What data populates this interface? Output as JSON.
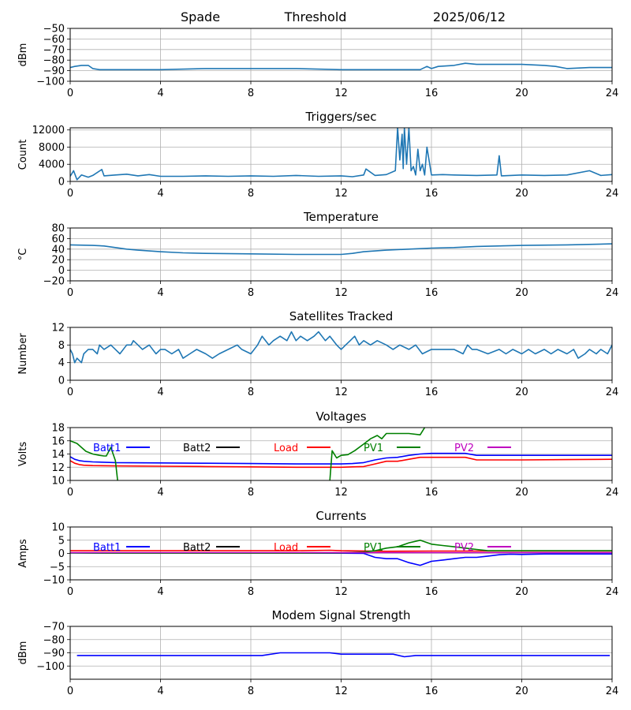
{
  "header": {
    "station": "Spade",
    "label": "Threshold",
    "date": "2025/06/12"
  },
  "colors": {
    "series": "#1f77b4",
    "batt1": "#0000ff",
    "batt2": "#000000",
    "load": "#ff0000",
    "pv1": "#008000",
    "pv2": "#bf00bf",
    "grid": "#b0b0b0"
  },
  "chart_data": [
    {
      "id": "threshold",
      "type": "line",
      "title": "",
      "ylabel": "dBm",
      "xlim": [
        0,
        24
      ],
      "ylim": [
        -100,
        -50
      ],
      "xticks": [
        0,
        4,
        8,
        12,
        16,
        20,
        24
      ],
      "yticks": [
        -100,
        -90,
        -80,
        -70,
        -60,
        -50
      ],
      "grid": true,
      "series": [
        {
          "x": [
            0,
            0.2,
            0.5,
            0.8,
            1.0,
            1.3,
            2,
            4,
            6,
            8,
            10,
            12,
            14,
            15.5,
            15.8,
            16,
            16.3,
            17,
            17.5,
            18,
            19,
            20,
            21,
            21.5,
            22,
            23,
            24
          ],
          "y": [
            -87,
            -86,
            -85,
            -85,
            -88,
            -89,
            -89,
            -89,
            -88,
            -88,
            -88,
            -89,
            -89,
            -89,
            -86,
            -88,
            -86,
            -85,
            -83,
            -84,
            -84,
            -84,
            -85,
            -86,
            -88,
            -87,
            -87
          ]
        }
      ]
    },
    {
      "id": "triggers",
      "type": "line",
      "title": "Triggers/sec",
      "ylabel": "Count",
      "xlim": [
        0,
        24
      ],
      "ylim": [
        0,
        12500
      ],
      "xticks": [
        0,
        4,
        8,
        12,
        16,
        20,
        24
      ],
      "yticks": [
        0,
        4000,
        8000,
        12000
      ],
      "grid": true,
      "series": [
        {
          "x": [
            0,
            0.15,
            0.3,
            0.5,
            0.8,
            1.0,
            1.4,
            1.5,
            2,
            2.5,
            3,
            3.5,
            4,
            5,
            6,
            7,
            8,
            9,
            10,
            11,
            12,
            12.5,
            13,
            13.1,
            13.5,
            14,
            14.4,
            14.5,
            14.6,
            14.7,
            14.75,
            14.8,
            14.9,
            15.0,
            15.1,
            15.2,
            15.3,
            15.4,
            15.5,
            15.6,
            15.7,
            15.8,
            16,
            16.5,
            17,
            18,
            18.9,
            19.0,
            19.1,
            19.5,
            20,
            21,
            22,
            23,
            23.5,
            24
          ],
          "y": [
            1200,
            2500,
            400,
            1500,
            1000,
            1400,
            2800,
            1300,
            1500,
            1700,
            1300,
            1600,
            1200,
            1200,
            1300,
            1200,
            1300,
            1200,
            1400,
            1200,
            1300,
            1100,
            1500,
            2900,
            1400,
            1600,
            2500,
            12500,
            5000,
            11000,
            3000,
            12500,
            4000,
            12500,
            2500,
            3500,
            1500,
            7500,
            2500,
            4000,
            1500,
            8000,
            1500,
            1600,
            1500,
            1400,
            1500,
            6000,
            1300,
            1400,
            1500,
            1400,
            1500,
            2500,
            1400,
            1600
          ]
        }
      ]
    },
    {
      "id": "temperature",
      "type": "line",
      "title": "Temperature",
      "ylabel": "°C",
      "xlim": [
        0,
        24
      ],
      "ylim": [
        -20,
        80
      ],
      "xticks": [
        0,
        4,
        8,
        12,
        16,
        20,
        24
      ],
      "yticks": [
        -20,
        0,
        20,
        40,
        60,
        80
      ],
      "grid": true,
      "series": [
        {
          "x": [
            0,
            1,
            1.5,
            2,
            2.5,
            3,
            4,
            5,
            6,
            8,
            10,
            12,
            12.5,
            13,
            14,
            15,
            16,
            17,
            18,
            20,
            22,
            24
          ],
          "y": [
            48,
            47,
            46,
            43,
            40,
            38,
            35,
            33,
            32,
            31,
            30,
            30,
            32,
            35,
            38,
            40,
            42,
            43,
            45,
            47,
            48,
            50
          ]
        }
      ]
    },
    {
      "id": "satellites",
      "type": "line",
      "title": "Satellites Tracked",
      "ylabel": "Number",
      "xlim": [
        0,
        24
      ],
      "ylim": [
        0,
        12
      ],
      "xticks": [
        0,
        4,
        8,
        12,
        16,
        20,
        24
      ],
      "yticks": [
        0,
        4,
        8,
        12
      ],
      "grid": true,
      "series": [
        {
          "x": [
            0,
            0.1,
            0.2,
            0.3,
            0.5,
            0.6,
            0.8,
            1.0,
            1.2,
            1.3,
            1.5,
            1.8,
            2.0,
            2.2,
            2.5,
            2.7,
            2.8,
            3.0,
            3.2,
            3.5,
            3.8,
            4.0,
            4.2,
            4.5,
            4.8,
            5.0,
            5.3,
            5.6,
            6.0,
            6.3,
            6.6,
            7.0,
            7.4,
            7.6,
            8.0,
            8.3,
            8.5,
            8.8,
            9.0,
            9.3,
            9.6,
            9.8,
            10.0,
            10.2,
            10.5,
            10.8,
            11.0,
            11.3,
            11.5,
            11.8,
            12.0,
            12.2,
            12.4,
            12.6,
            12.8,
            13.0,
            13.3,
            13.6,
            14.0,
            14.3,
            14.6,
            15.0,
            15.3,
            15.6,
            16.0,
            16.5,
            17.0,
            17.4,
            17.6,
            17.8,
            18.0,
            18.5,
            19.0,
            19.3,
            19.6,
            20.0,
            20.3,
            20.6,
            21.0,
            21.3,
            21.6,
            22.0,
            22.3,
            22.5,
            22.8,
            23.0,
            23.3,
            23.5,
            23.8,
            24.0
          ],
          "y": [
            7,
            6,
            4,
            5,
            4,
            6,
            7,
            7,
            6,
            8,
            7,
            8,
            7,
            6,
            8,
            8,
            9,
            8,
            7,
            8,
            6,
            7,
            7,
            6,
            7,
            5,
            6,
            7,
            6,
            5,
            6,
            7,
            8,
            7,
            6,
            8,
            10,
            8,
            9,
            10,
            9,
            11,
            9,
            10,
            9,
            10,
            11,
            9,
            10,
            8,
            7,
            8,
            9,
            10,
            8,
            9,
            8,
            9,
            8,
            7,
            8,
            7,
            8,
            6,
            7,
            7,
            7,
            6,
            8,
            7,
            7,
            6,
            7,
            6,
            7,
            6,
            7,
            6,
            7,
            6,
            7,
            6,
            7,
            5,
            6,
            7,
            6,
            7,
            6,
            8
          ]
        }
      ]
    },
    {
      "id": "voltages",
      "type": "line",
      "title": "Voltages",
      "ylabel": "Volts",
      "xlim": [
        0,
        24
      ],
      "ylim": [
        10,
        18
      ],
      "xticks": [
        0,
        4,
        8,
        12,
        16,
        20,
        24
      ],
      "yticks": [
        10,
        12,
        14,
        16,
        18
      ],
      "grid": true,
      "legend": [
        "Batt1",
        "Batt2",
        "Load",
        "PV1",
        "PV2"
      ],
      "series": [
        {
          "name": "Batt1",
          "color": "#0000ff",
          "x": [
            0,
            0.2,
            0.4,
            0.6,
            1,
            2,
            4,
            6,
            8,
            10,
            12,
            12.5,
            13,
            13.5,
            14,
            14.5,
            15,
            15.5,
            16,
            17,
            17.5,
            18,
            19,
            20,
            22,
            24
          ],
          "y": [
            13.6,
            13.2,
            13.0,
            12.9,
            12.8,
            12.7,
            12.65,
            12.6,
            12.55,
            12.5,
            12.5,
            12.55,
            12.7,
            13.1,
            13.4,
            13.5,
            13.8,
            14.0,
            14.1,
            14.1,
            14.1,
            13.8,
            13.8,
            13.8,
            13.8,
            13.8
          ]
        },
        {
          "name": "Load",
          "color": "#ff0000",
          "x": [
            0,
            0.2,
            0.4,
            0.6,
            1,
            2,
            4,
            6,
            8,
            10,
            12,
            12.5,
            13,
            13.5,
            14,
            14.5,
            15,
            15.5,
            16,
            17,
            17.5,
            18,
            19,
            20,
            22,
            24
          ],
          "y": [
            13.0,
            12.6,
            12.4,
            12.3,
            12.25,
            12.2,
            12.15,
            12.1,
            12.05,
            12.0,
            12.0,
            12.05,
            12.1,
            12.5,
            12.9,
            12.9,
            13.2,
            13.5,
            13.5,
            13.5,
            13.5,
            13.1,
            13.1,
            13.1,
            13.15,
            13.2
          ]
        },
        {
          "name": "PV1",
          "color": "#008000",
          "x": [
            0,
            0.3,
            0.5,
            0.7,
            1.0,
            1.3,
            1.5,
            1.6,
            1.8,
            2.0,
            2.1
          ],
          "y": [
            16.0,
            15.6,
            15.0,
            14.4,
            14.0,
            13.8,
            13.7,
            13.7,
            15.0,
            13.0,
            10.0
          ]
        },
        {
          "name": "PV1",
          "color": "#008000",
          "x": [
            11.5,
            11.6,
            11.8,
            12.0,
            12.3,
            12.6,
            13.0,
            13.3,
            13.6,
            13.8,
            14.0,
            14.5,
            15.0,
            15.5,
            15.7
          ],
          "y": [
            10.0,
            14.5,
            13.4,
            13.8,
            13.9,
            14.5,
            15.5,
            16.3,
            16.8,
            16.3,
            17.1,
            17.1,
            17.1,
            16.9,
            18.0
          ]
        }
      ]
    },
    {
      "id": "currents",
      "type": "line",
      "title": "Currents",
      "ylabel": "Amps",
      "xlim": [
        0,
        24
      ],
      "ylim": [
        -10,
        10
      ],
      "xticks": [
        0,
        4,
        8,
        12,
        16,
        20,
        24
      ],
      "yticks": [
        -10,
        -5,
        0,
        5,
        10
      ],
      "grid": true,
      "legend": [
        "Batt1",
        "Batt2",
        "Load",
        "PV1",
        "PV2"
      ],
      "series": [
        {
          "name": "Load",
          "color": "#ff0000",
          "x": [
            0,
            2,
            4,
            6,
            8,
            10,
            11.5,
            12,
            14,
            16,
            18,
            20,
            22,
            24
          ],
          "y": [
            1.0,
            1.0,
            1.0,
            1.0,
            1.0,
            1.0,
            1.2,
            1.0,
            0.8,
            0.9,
            0.9,
            0.9,
            0.9,
            0.9
          ]
        },
        {
          "name": "Batt1",
          "color": "#0000ff",
          "x": [
            0,
            2,
            4,
            6,
            8,
            10,
            12,
            13,
            13.5,
            14,
            14.5,
            15,
            15.5,
            16,
            16.5,
            17,
            17.5,
            18,
            18.5,
            19,
            19.5,
            20,
            21,
            22,
            23,
            24
          ],
          "y": [
            0.2,
            0.1,
            0.1,
            0.1,
            0.1,
            0.1,
            0.1,
            0.0,
            -1.5,
            -2.0,
            -2.0,
            -3.5,
            -4.5,
            -3.0,
            -2.5,
            -2.0,
            -1.5,
            -1.5,
            -1.0,
            -0.5,
            -0.3,
            -0.4,
            -0.2,
            -0.2,
            -0.2,
            -0.2
          ]
        },
        {
          "name": "PV1",
          "color": "#008000",
          "x": [
            0,
            2,
            4,
            6,
            8,
            10,
            12,
            13,
            13.5,
            14,
            14.5,
            15,
            15.5,
            16,
            16.5,
            17,
            17.5,
            18,
            18.5,
            19,
            20,
            22,
            24
          ],
          "y": [
            0.2,
            0.1,
            0.1,
            0.1,
            0.1,
            0.1,
            0.2,
            0.5,
            1.0,
            2.0,
            2.5,
            4.0,
            5.0,
            3.5,
            3.0,
            2.5,
            2.0,
            1.5,
            1.0,
            1.0,
            1.0,
            1.0,
            1.0
          ]
        },
        {
          "name": "PV2",
          "color": "#bf00bf",
          "x": [
            0,
            4,
            8,
            12,
            16,
            20,
            24
          ],
          "y": [
            0.3,
            0.3,
            0.3,
            0.3,
            0.3,
            0.3,
            0.3
          ]
        }
      ]
    },
    {
      "id": "modem",
      "type": "line",
      "title": "Modem Signal Strength",
      "ylabel": "dBm",
      "xlim": [
        0,
        24
      ],
      "ylim": [
        -110,
        -70
      ],
      "xticks": [
        0,
        4,
        8,
        12,
        16,
        20,
        24
      ],
      "yticks": [
        -100,
        -90,
        -80,
        -70
      ],
      "grid": true,
      "series": [
        {
          "name": "",
          "color": "#0000ff",
          "x": [
            0.3,
            2,
            4,
            6,
            8,
            8.5,
            9.3,
            10,
            11,
            11.5,
            12,
            13,
            14,
            14.3,
            14.8,
            15.3,
            16,
            18,
            20,
            22,
            23.9
          ],
          "y": [
            -92,
            -92,
            -92,
            -92,
            -92,
            -92,
            -90,
            -90,
            -90,
            -90,
            -91,
            -91,
            -91,
            -91,
            -93,
            -92,
            -92,
            -92,
            -92,
            -92,
            -92
          ]
        }
      ]
    }
  ]
}
